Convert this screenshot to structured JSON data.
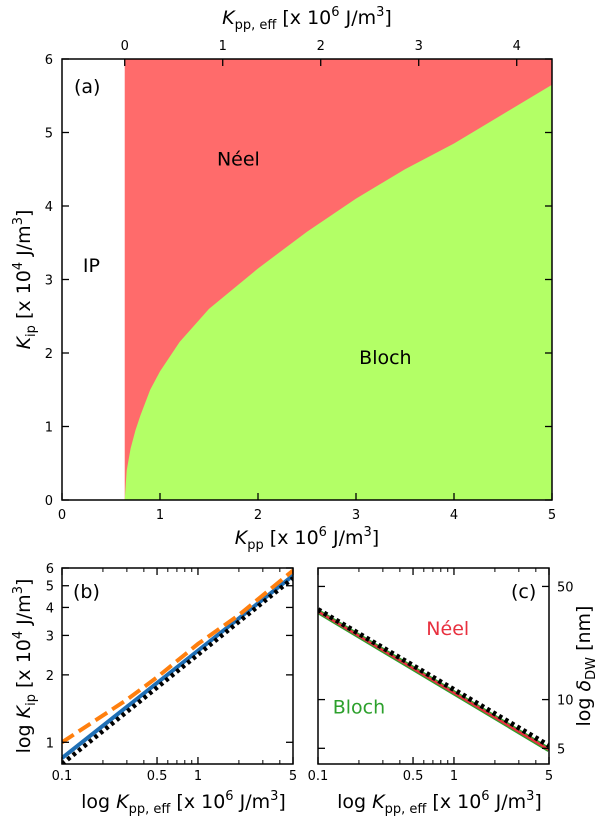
{
  "chart_data": [
    {
      "type": "heatmap",
      "panel_label": "(a)",
      "xlabel": {
        "sym": "K",
        "sub": "pp",
        "rest": " [x 10",
        "sup": "6",
        "unit": " J/m",
        "unit_sup": "3",
        "close": "]"
      },
      "top_xlabel": {
        "sym": "K",
        "sub": "pp, eff",
        "rest": " [x 10",
        "sup": "6",
        "unit": " J/m",
        "unit_sup": "3",
        "close": "]"
      },
      "ylabel": {
        "sym": "K",
        "sub": "ip",
        "rest": " [x 10",
        "sup": "4",
        "unit": " J/m",
        "unit_sup": "3",
        "close": "]"
      },
      "xlim": [
        0,
        5
      ],
      "ylim": [
        0,
        6
      ],
      "xticks": [
        "0",
        "1",
        "2",
        "3",
        "4",
        "5"
      ],
      "yticks": [
        "0",
        "1",
        "2",
        "3",
        "4",
        "5",
        "6"
      ],
      "top_xticks": [
        "0",
        "1",
        "2",
        "3",
        "4"
      ],
      "top_axis_offset": 0.64,
      "regions": [
        {
          "name": "IP",
          "color": "#ffffff",
          "label_at": [
            0.3,
            3.1
          ]
        },
        {
          "name": "Néel",
          "color": "#ff6b6b",
          "label_at": [
            1.8,
            4.55
          ]
        },
        {
          "name": "Bloch",
          "color": "#b3ff66",
          "label_at": [
            3.3,
            1.85
          ]
        }
      ],
      "ip_boundary_x": 0.64,
      "neel_bloch_boundary": {
        "x": [
          0.64,
          0.66,
          0.7,
          0.75,
          0.8,
          0.9,
          1.0,
          1.2,
          1.5,
          2.0,
          2.5,
          3.0,
          3.5,
          4.0,
          4.5,
          5.0
        ],
        "y": [
          0.0,
          0.4,
          0.7,
          0.95,
          1.15,
          1.5,
          1.75,
          2.15,
          2.6,
          3.15,
          3.65,
          4.1,
          4.5,
          4.85,
          5.25,
          5.65
        ]
      }
    },
    {
      "type": "line",
      "panel_label": "(b)",
      "log_x": true,
      "log_y": true,
      "xlabel": {
        "pre": "log ",
        "sym": "K",
        "sub": "pp, eff",
        "rest": " [x 10",
        "sup": "6",
        "unit": " J/m",
        "unit_sup": "3",
        "close": "]"
      },
      "ylabel": {
        "pre": "log ",
        "sym": "K",
        "sub": "ip",
        "rest": " [x 10",
        "sup": "4",
        "unit": " J/m",
        "unit_sup": "3",
        "close": "]"
      },
      "xlim": [
        0.1,
        5
      ],
      "ylim": [
        0.8,
        6
      ],
      "xticks": [
        0.1,
        0.5,
        1,
        5
      ],
      "xtick_labels": [
        "0.1",
        "0.5",
        "1",
        "5"
      ],
      "yticks": [
        1,
        2,
        3,
        4,
        5,
        6
      ],
      "ytick_labels": [
        "1",
        "2",
        "3",
        "4",
        "5",
        "6"
      ],
      "series": [
        {
          "style": "solid",
          "color": "#1f6fb5",
          "x": [
            0.1,
            5
          ],
          "y": [
            0.85,
            5.55
          ]
        },
        {
          "style": "dashed",
          "color": "#ff7f0e",
          "x": [
            0.1,
            0.3,
            0.5,
            1,
            2,
            5
          ],
          "y": [
            1.0,
            1.55,
            1.95,
            2.75,
            3.7,
            5.85
          ]
        },
        {
          "style": "dotted",
          "color": "#000000",
          "x": [
            0.1,
            5
          ],
          "y": [
            0.8,
            5.4
          ]
        }
      ]
    },
    {
      "type": "line",
      "panel_label": "(c)",
      "log_x": true,
      "log_y": true,
      "xlabel": {
        "pre": "log ",
        "sym": "K",
        "sub": "pp, eff",
        "rest": " [x 10",
        "sup": "6",
        "unit": " J/m",
        "unit_sup": "3",
        "close": "]"
      },
      "ylabel": {
        "pre": "log ",
        "sym": "δ",
        "sub": "DW",
        "rest": " [nm]"
      },
      "xlim": [
        0.1,
        5
      ],
      "ylim": [
        4,
        65
      ],
      "xticks": [
        0.1,
        0.5,
        1,
        5
      ],
      "xtick_labels": [
        "0.1",
        "0.5",
        "1",
        "5"
      ],
      "yticks": [
        5,
        10,
        50
      ],
      "ytick_labels": [
        "5",
        "10",
        "50"
      ],
      "annotations": [
        {
          "text": "Néel",
          "color": "#e8303f",
          "at": [
            0.9,
            25
          ]
        },
        {
          "text": "Bloch",
          "color": "#2ca02c",
          "at": [
            0.2,
            8.2
          ]
        }
      ],
      "series": [
        {
          "style": "solid",
          "color": "#2ca02c",
          "width": 5,
          "x": [
            0.1,
            5
          ],
          "y": [
            35,
            4.9
          ]
        },
        {
          "style": "solid",
          "color": "#e8303f",
          "width": 2.5,
          "x": [
            0.1,
            5
          ],
          "y": [
            35,
            4.9
          ]
        },
        {
          "style": "dotted",
          "color": "#000000",
          "width": 5,
          "x": [
            0.1,
            5
          ],
          "y": [
            36,
            5.2
          ]
        }
      ]
    }
  ]
}
